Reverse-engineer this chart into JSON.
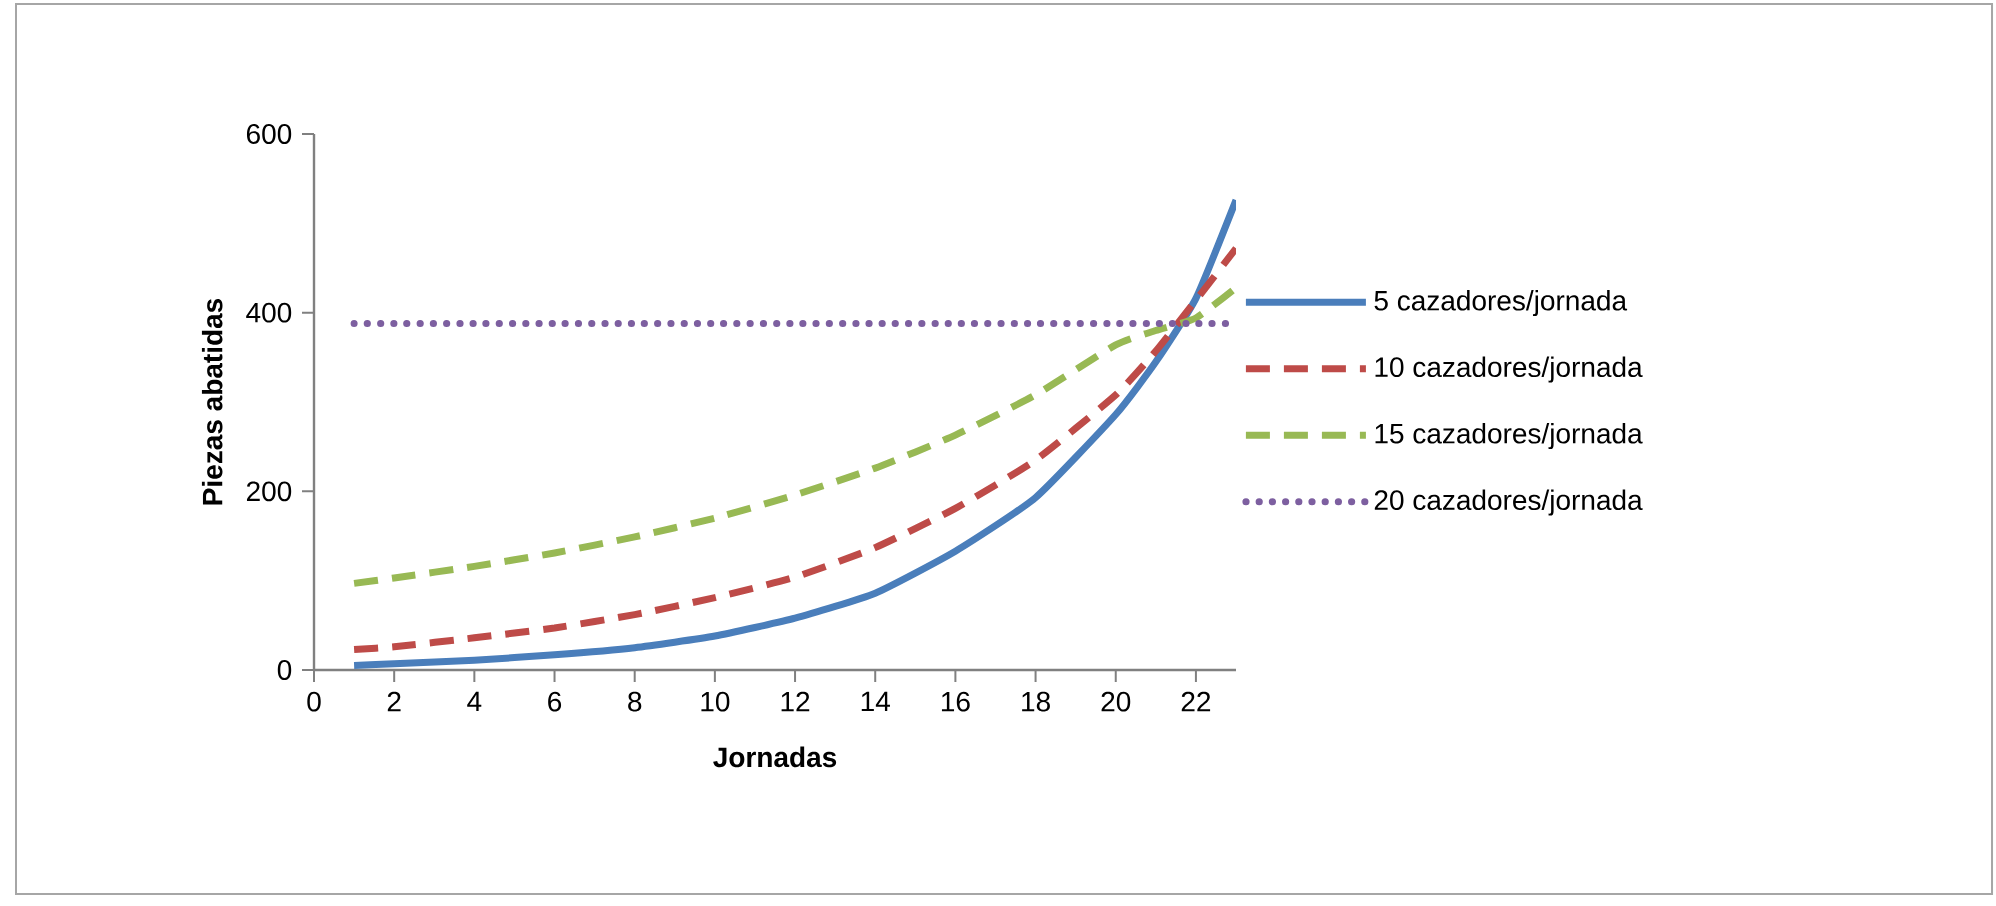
{
  "chart_data": {
    "type": "line",
    "xlabel": "Jornadas",
    "ylabel": "Piezas abatidas",
    "xlim": [
      0,
      23
    ],
    "xticks": [
      0,
      2,
      4,
      6,
      8,
      10,
      12,
      14,
      16,
      18,
      20,
      22
    ],
    "ylim": [
      0,
      600
    ],
    "yticks": [
      0,
      200,
      400,
      600
    ],
    "legend": "right",
    "x": [
      1,
      2,
      4,
      6,
      8,
      10,
      12,
      14,
      16,
      18,
      20,
      21,
      22,
      23
    ],
    "series": [
      {
        "name": "5 cazadores/jornada",
        "color": "#4a7ebb",
        "line_style": "solid",
        "values": [
          5,
          7,
          11,
          17,
          25,
          38,
          58,
          86,
          133,
          193,
          286,
          345,
          416,
          526
        ]
      },
      {
        "name": "10 cazadores/jornada",
        "color": "#be4b48",
        "line_style": "dashed",
        "values": [
          23,
          26,
          36,
          47,
          62,
          81,
          104,
          137,
          181,
          235,
          308,
          357,
          414,
          472
        ]
      },
      {
        "name": "15 cazadores/jornada",
        "color": "#98b954",
        "line_style": "dashed",
        "values": [
          97,
          103,
          116,
          131,
          149,
          170,
          196,
          226,
          263,
          308,
          364,
          380,
          394,
          428
        ]
      },
      {
        "name": "20 cazadores/jornada",
        "color": "#7d5fa0",
        "line_style": "dotted",
        "values": [
          388,
          388,
          388,
          388,
          388,
          388,
          388,
          388,
          388,
          388,
          388,
          388,
          388,
          388
        ]
      }
    ]
  }
}
